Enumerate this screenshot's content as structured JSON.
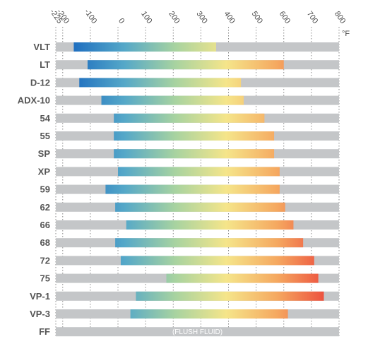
{
  "chart_data": {
    "type": "bar",
    "orientation": "horizontal-range",
    "x_unit": "°F",
    "x_ticks": [
      -225,
      -200,
      -100,
      0,
      100,
      200,
      300,
      400,
      500,
      600,
      700,
      800
    ],
    "xlim": [
      -225,
      800
    ],
    "gradient_stops": [
      "#1f6fc0",
      "#55a8c8",
      "#a8d3a0",
      "#f5e58a",
      "#f5a860",
      "#ec4b3c"
    ],
    "track_color": "#c4c6c8",
    "grid": "dotted vertical",
    "categories": [
      "VLT",
      "LT",
      "D-12",
      "ADX-10",
      "54",
      "55",
      "SP",
      "XP",
      "59",
      "62",
      "66",
      "68",
      "72",
      "75",
      "VP-1",
      "VP-3",
      "FF"
    ],
    "ranges": [
      {
        "min": -160,
        "max": 355
      },
      {
        "min": -110,
        "max": 600
      },
      {
        "min": -140,
        "max": 445
      },
      {
        "min": -60,
        "max": 455
      },
      {
        "min": -15,
        "max": 530
      },
      {
        "min": -15,
        "max": 565
      },
      {
        "min": -15,
        "max": 565
      },
      {
        "min": 0,
        "max": 585
      },
      {
        "min": -45,
        "max": 585
      },
      {
        "min": -10,
        "max": 605
      },
      {
        "min": 30,
        "max": 635
      },
      {
        "min": -10,
        "max": 670
      },
      {
        "min": 10,
        "max": 710
      },
      {
        "min": 175,
        "max": 725
      },
      {
        "min": 65,
        "max": 745
      },
      {
        "min": 45,
        "max": 615
      },
      null
    ],
    "annotations": [
      {
        "category": "FF",
        "text": "(FLUSH FLUID)"
      }
    ]
  }
}
